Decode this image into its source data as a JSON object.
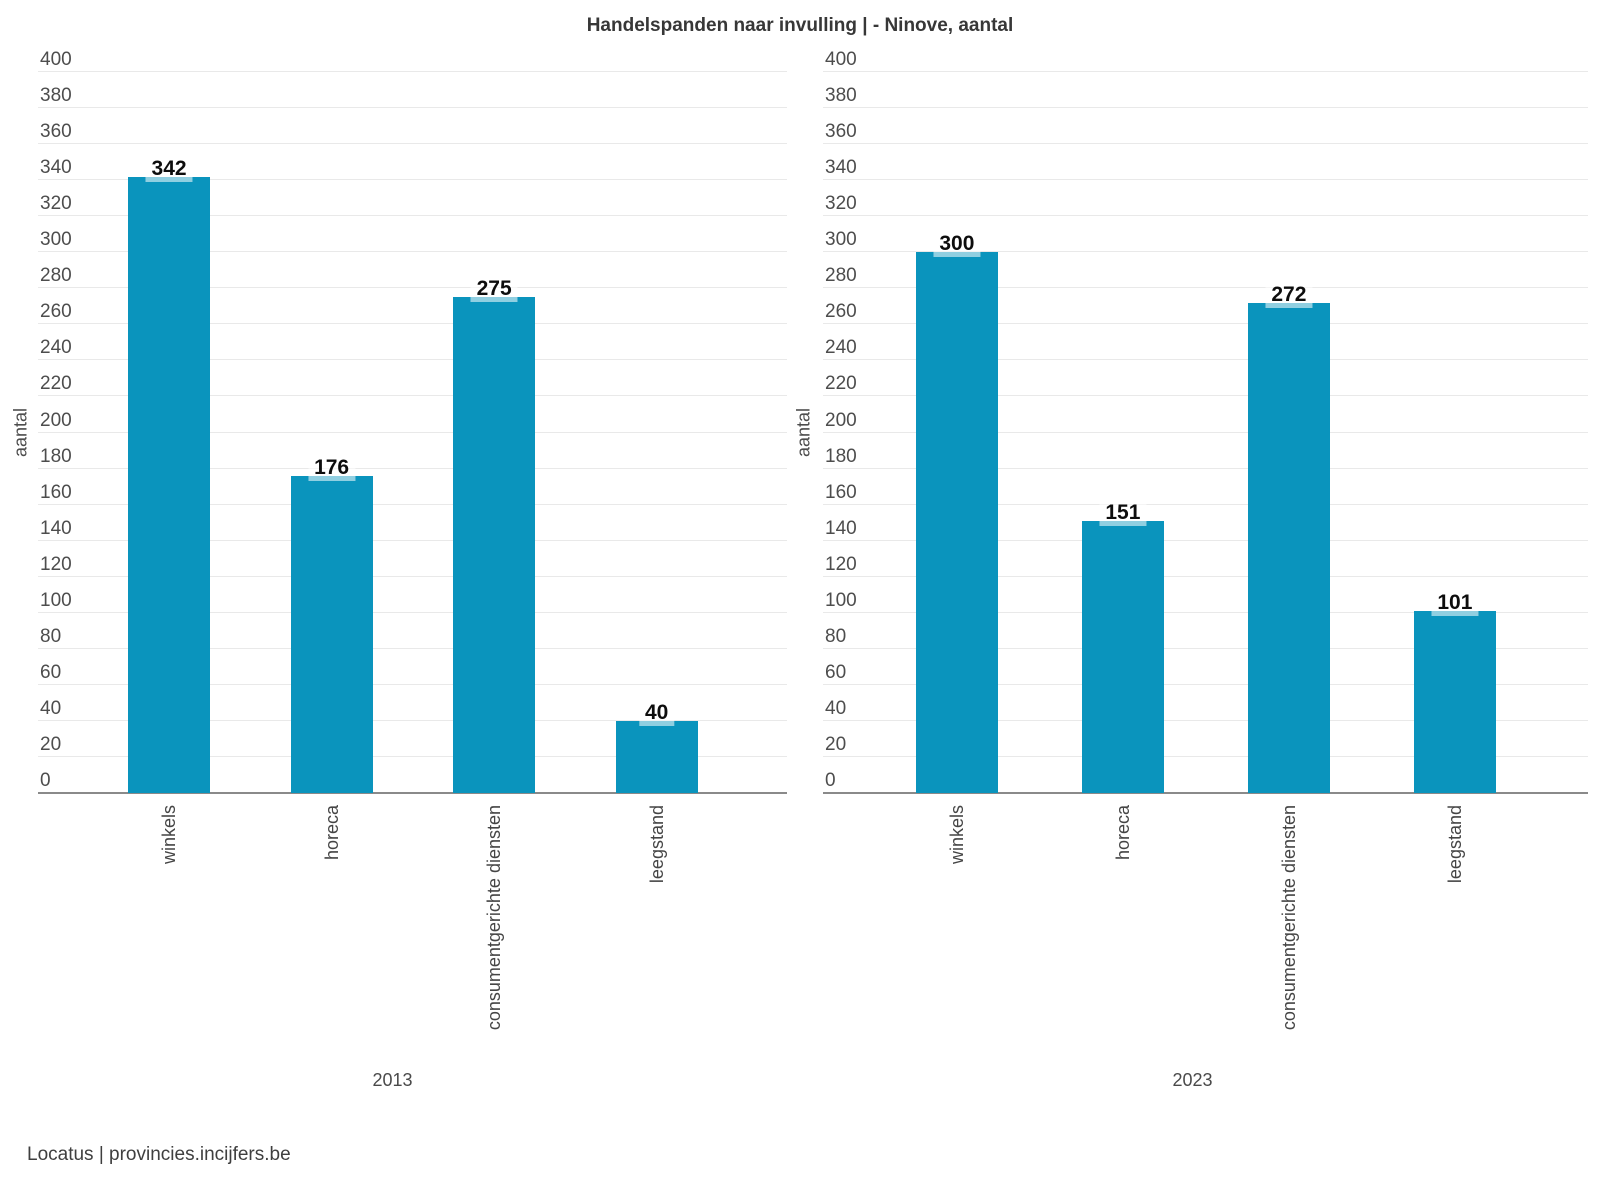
{
  "chart_data": {
    "type": "bar",
    "title": "Handelspanden naar invulling | - Ninove, aantal",
    "ylabel": "aantal",
    "xlabel": "",
    "ylim": [
      0,
      400
    ],
    "ytick_step": 20,
    "grid": true,
    "legend_position": "none",
    "bar_color": "#0a94bd",
    "value_label_color": "#0d0d0d",
    "categories": [
      "winkels",
      "horeca",
      "consumentgerichte diensten",
      "leegstand"
    ],
    "series": [
      {
        "name": "2013",
        "values": [
          342,
          176,
          275,
          40
        ]
      },
      {
        "name": "2023",
        "values": [
          300,
          151,
          272,
          101
        ]
      }
    ],
    "source": "Locatus | provincies.incijfers.be"
  }
}
